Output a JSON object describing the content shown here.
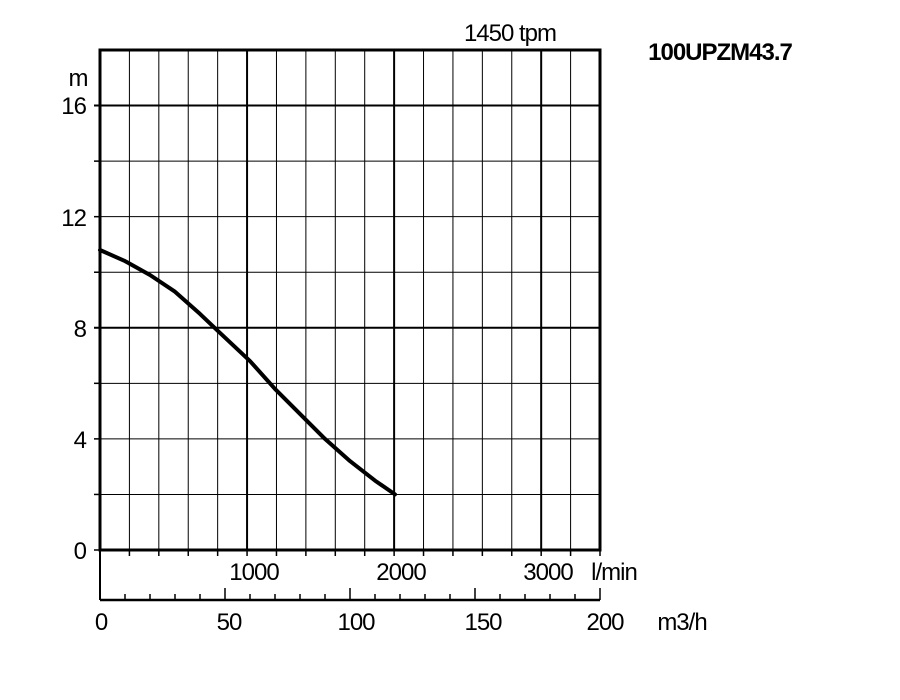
{
  "chart_data": {
    "type": "line",
    "title": "100UPZM43.7",
    "speed_label": "1450 tpm",
    "ylabel": "m",
    "ylim": [
      0,
      18
    ],
    "y_ticks": [
      "0",
      "4",
      "8",
      "12",
      "16"
    ],
    "x_lpm_ticks": [
      "1000",
      "2000",
      "3000"
    ],
    "x_lpm_unit": "l/min",
    "x_m3h_ticks": [
      "0",
      "50",
      "100",
      "150",
      "200"
    ],
    "x_m3h_unit": "m3/h",
    "xlim_m3h": [
      0,
      200
    ],
    "grid": true,
    "series": [
      {
        "x": [
          0,
          10,
          20,
          30,
          40,
          47,
          60,
          70,
          80,
          90,
          100,
          110,
          118
        ],
        "y": [
          10.8,
          10.4,
          9.9,
          9.3,
          8.5,
          7.9,
          6.8,
          5.8,
          4.9,
          4.0,
          3.2,
          2.5,
          2.0
        ]
      }
    ]
  }
}
